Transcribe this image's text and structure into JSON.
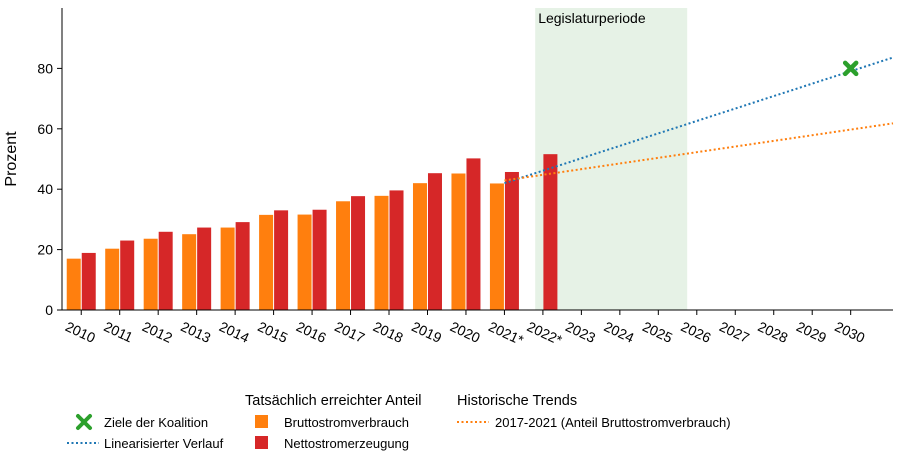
{
  "chart_data": {
    "type": "bar",
    "ylabel": "Prozent",
    "ylim": [
      0,
      100
    ],
    "yticks": [
      0,
      20,
      40,
      60,
      80
    ],
    "xlim": [
      2009.5,
      2031.1
    ],
    "x_tick_labels": [
      "2010",
      "2011",
      "2012",
      "2013",
      "2014",
      "2015",
      "2016",
      "2017",
      "2018",
      "2019",
      "2020",
      "2021*",
      "2022*",
      "2023",
      "2024",
      "2025",
      "2026",
      "2027",
      "2028",
      "2029",
      "2030"
    ],
    "series": [
      {
        "name": "Bruttostromverbrauch",
        "color": "#ff7f0e",
        "x": [
          2010,
          2011,
          2012,
          2013,
          2014,
          2015,
          2016,
          2017,
          2018,
          2019,
          2020,
          2021
        ],
        "values": [
          17,
          20.3,
          23.6,
          25.1,
          27.3,
          31.5,
          31.6,
          36,
          37.8,
          42,
          45.2,
          41.9
        ]
      },
      {
        "name": "Nettostromerzeugung",
        "color": "#d62728",
        "x": [
          2010,
          2011,
          2012,
          2013,
          2014,
          2015,
          2016,
          2017,
          2018,
          2019,
          2020,
          2021,
          2022
        ],
        "values": [
          18.9,
          23,
          25.9,
          27.3,
          29.1,
          33,
          33.2,
          37.7,
          39.6,
          45.3,
          50.2,
          45.7,
          51.6
        ]
      }
    ],
    "shaded_region": {
      "label": "Legislaturperiode",
      "x": [
        2021.8,
        2025.75
      ],
      "color": "#e6f2e6"
    },
    "trend_lines": [
      {
        "name": "Linearisierter Verlauf",
        "color": "#1f77b4",
        "style": "dotted",
        "from": [
          2021,
          42
        ],
        "to": [
          2031.1,
          83.6
        ]
      },
      {
        "name": "2017-2021 (Anteil Bruttostromverbrauch)",
        "color": "#ff7f0e",
        "style": "dotted",
        "from": [
          2021,
          42.9
        ],
        "to": [
          2031.1,
          61.8
        ]
      }
    ],
    "target_point": {
      "name": "Ziele der Koalition",
      "x": 2030,
      "y": 80,
      "color": "#2ca02c",
      "marker": "x-cross"
    },
    "legend": {
      "placement": "bottom",
      "group_actual_title": "Tatsächlich erreichter Anteil",
      "group_trends_title": "Historische Trends",
      "items": {
        "target": "Ziele der Koalition",
        "linear": "Linearisierter Verlauf",
        "brutto": "Bruttostromverbrauch",
        "netto": "Nettostromerzeugung",
        "hist": "2017-2021 (Anteil Bruttostromverbrauch)"
      }
    }
  }
}
